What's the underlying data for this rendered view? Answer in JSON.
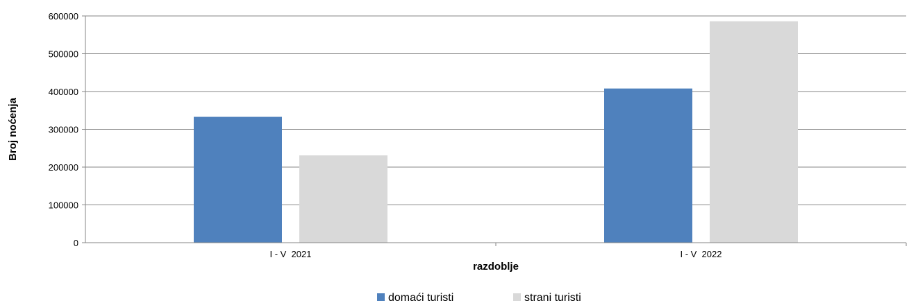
{
  "chart_data": {
    "type": "bar",
    "title": "",
    "xlabel": "razdoblje",
    "ylabel": "Broj noćenja",
    "categories": [
      "I - V  2021",
      "I - V  2022"
    ],
    "series": [
      {
        "name": "domaći turisti",
        "values": [
          333000,
          408000
        ],
        "color": "#4f81bd"
      },
      {
        "name": "strani turisti",
        "values": [
          231000,
          586000
        ],
        "color": "#d9d9d9"
      }
    ],
    "ylim": [
      0,
      600000
    ],
    "yticks": [
      0,
      100000,
      200000,
      300000,
      400000,
      500000,
      600000
    ],
    "grid": true,
    "legend_position": "bottom"
  }
}
